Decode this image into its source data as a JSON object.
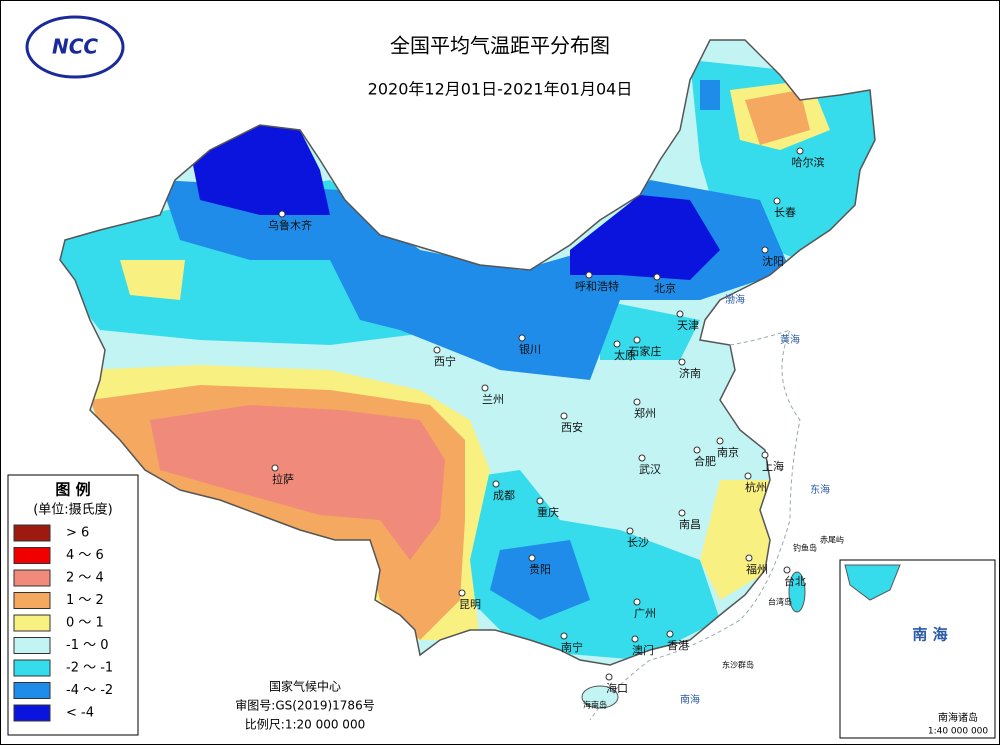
{
  "header": {
    "logo": "NCC",
    "title": "全国平均气温距平分布图",
    "subtitle": "2020年12月01日-2021年01月04日"
  },
  "legend": {
    "title": "图 例",
    "unit": "(单位:摄氏度)",
    "items": [
      {
        "label": "> 6",
        "color": "#9e1a10"
      },
      {
        "label": "4 ～ 6",
        "color": "#f00000"
      },
      {
        "label": "2 ～ 4",
        "color": "#f08a7a"
      },
      {
        "label": "1 ～ 2",
        "color": "#f4a860"
      },
      {
        "label": "0 ～ 1",
        "color": "#f8f080"
      },
      {
        "label": "-1 ～ 0",
        "color": "#c2f4f4"
      },
      {
        "label": "-2 ～ -1",
        "color": "#36dcec"
      },
      {
        "label": "-4 ～ -2",
        "color": "#1e8ce8"
      },
      {
        "label": "< -4",
        "color": "#0a14dc"
      }
    ]
  },
  "cities": [
    "乌鲁木齐",
    "哈尔滨",
    "长春",
    "沈阳",
    "呼和浩特",
    "北京",
    "天津",
    "石家庄",
    "太原",
    "银川",
    "西宁",
    "济南",
    "兰州",
    "郑州",
    "西安",
    "南京",
    "合肥",
    "上海",
    "武汉",
    "杭州",
    "拉萨",
    "成都",
    "重庆",
    "南昌",
    "长沙",
    "福州",
    "贵阳",
    "台北",
    "昆明",
    "广州",
    "香港",
    "澳门",
    "南宁",
    "海口"
  ],
  "places": [
    "钓鱼岛",
    "赤尾屿",
    "台湾岛",
    "东沙群岛",
    "海南岛"
  ],
  "seas": [
    "渤海",
    "黄海",
    "东海",
    "南海"
  ],
  "footer": {
    "agency": "国家气候中心",
    "approval": "审图号:GS(2019)1786号",
    "scale": "比例尺:1:20 000 000"
  },
  "inset": {
    "title": "南 海",
    "caption": "南海诸岛",
    "scale": "1:40 000 000"
  }
}
